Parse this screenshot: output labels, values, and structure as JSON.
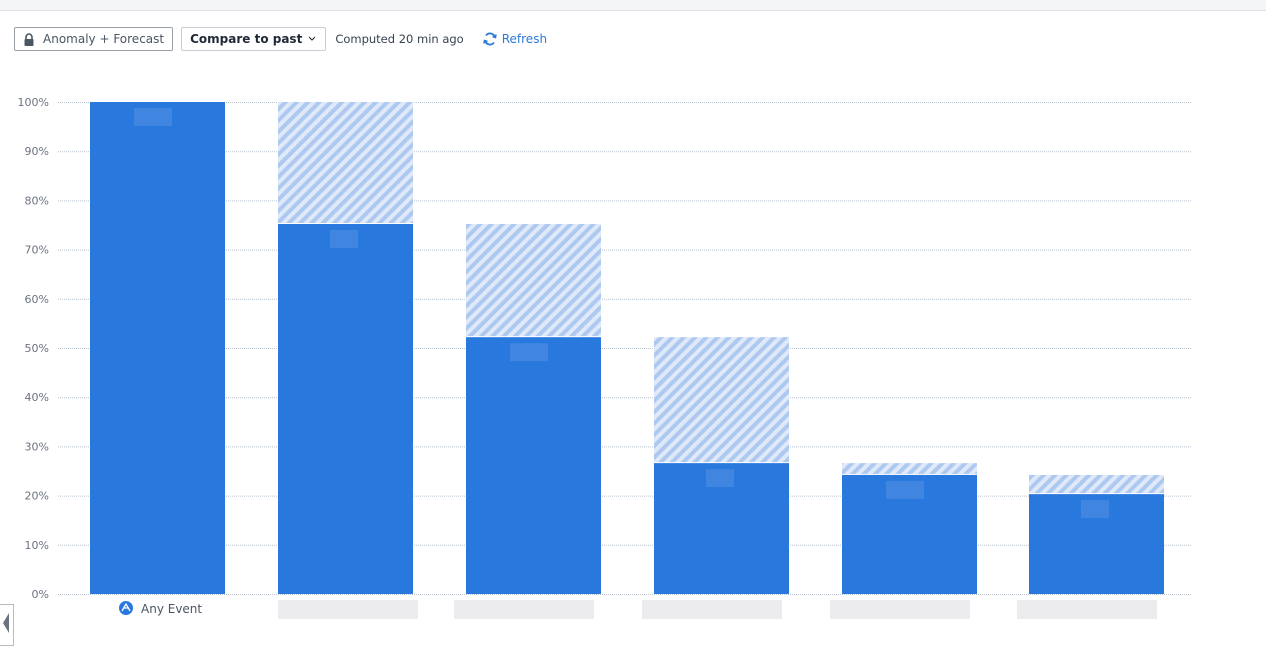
{
  "toolbar": {
    "anomaly_label": "Anomaly + Forecast",
    "compare_label": "Compare to past",
    "computed_text": "Computed 20 min ago",
    "refresh_label": "Refresh"
  },
  "colors": {
    "bar": "#2878de",
    "past": "#c5d9f5",
    "grid": "#b9c4d0",
    "accent": "#2e7ad7"
  },
  "chart_data": {
    "type": "bar",
    "categories": [
      "Any Event",
      "",
      "",
      "",
      "",
      ""
    ],
    "ylim": [
      0,
      100
    ],
    "yticks": [
      "0%",
      "10%",
      "20%",
      "30%",
      "40%",
      "50%",
      "60%",
      "70%",
      "80%",
      "90%",
      "100%"
    ],
    "grid": true,
    "series": [
      {
        "values": [
          100,
          75.2,
          52.2,
          26.6,
          24.2,
          20.3
        ]
      },
      {
        "values": [
          null,
          100,
          75.2,
          52.2,
          26.6,
          24.2
        ],
        "style": "hatched"
      }
    ]
  }
}
